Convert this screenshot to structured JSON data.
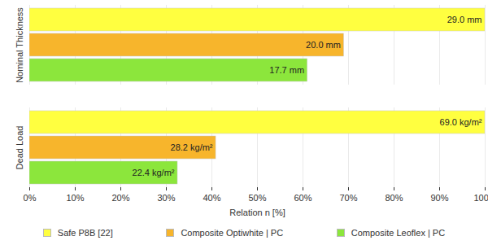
{
  "chart_data": {
    "type": "bar",
    "orientation": "horizontal",
    "categories": [
      "Nominal Thickness",
      "Dead Load"
    ],
    "series": [
      {
        "name": "Safe P8B [22]",
        "color": "#ffff40",
        "values": [
          100,
          100
        ],
        "value_labels": [
          "29.0 mm",
          "69.0 kg/m²"
        ]
      },
      {
        "name": "Composite Optiwhite | PC",
        "color": "#f7b52c",
        "values": [
          69.0,
          40.9
        ],
        "value_labels": [
          "20.0 mm",
          "28.2 kg/m²"
        ]
      },
      {
        "name": "Composite Leoflex | PC",
        "color": "#8ce63c",
        "values": [
          61.0,
          32.5
        ],
        "value_labels": [
          "17.7 mm",
          "22.4 kg/m²"
        ]
      }
    ],
    "x_label": "Relation n [%]",
    "xlim": [
      0,
      100
    ],
    "xticks": [
      {
        "value": 0,
        "label": "0%"
      },
      {
        "value": 10,
        "label": "10%"
      },
      {
        "value": 20,
        "label": "20%"
      },
      {
        "value": 30,
        "label": "30%"
      },
      {
        "value": 40,
        "label": "40%"
      },
      {
        "value": 50,
        "label": "50%"
      },
      {
        "value": 60,
        "label": "60%"
      },
      {
        "value": 70,
        "label": "70%"
      },
      {
        "value": 80,
        "label": "80%"
      },
      {
        "value": 90,
        "label": "90%"
      },
      {
        "value": 100,
        "label": "100%"
      }
    ],
    "grid": true,
    "legend": "bottom",
    "data_labels": true
  }
}
